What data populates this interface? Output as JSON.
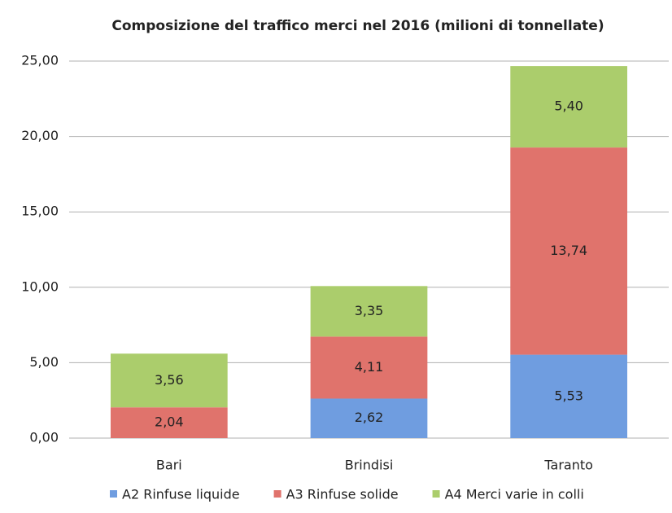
{
  "chart_data": {
    "type": "stacked_bar",
    "title": "Composizione del traffico merci nel 2016 (milioni di tonnellate)",
    "categories": [
      "Bari",
      "Brindisi",
      "Taranto"
    ],
    "series": [
      {
        "name": "A2 Rinfuse liquide",
        "color": "#6f9de0",
        "values": [
          null,
          2.62,
          5.53
        ],
        "value_labels": [
          null,
          "2,62",
          "5,53"
        ]
      },
      {
        "name": "A3 Rinfuse solide",
        "color": "#e0736c",
        "values": [
          2.04,
          4.11,
          13.74
        ],
        "value_labels": [
          "2,04",
          "4,11",
          "13,74"
        ]
      },
      {
        "name": "A4 Merci varie in colli",
        "color": "#abcd6c",
        "values": [
          3.56,
          3.35,
          5.4
        ],
        "value_labels": [
          "3,56",
          "3,35",
          "5,40"
        ]
      }
    ],
    "ylim": [
      0,
      25
    ],
    "yticks": [
      {
        "value": 0,
        "label": "0,00"
      },
      {
        "value": 5,
        "label": "5,00"
      },
      {
        "value": 10,
        "label": "10,00"
      },
      {
        "value": 15,
        "label": "15,00"
      },
      {
        "value": 20,
        "label": "20,00"
      },
      {
        "value": 25,
        "label": "25,00"
      }
    ],
    "grid": true,
    "legend": "bottom"
  }
}
